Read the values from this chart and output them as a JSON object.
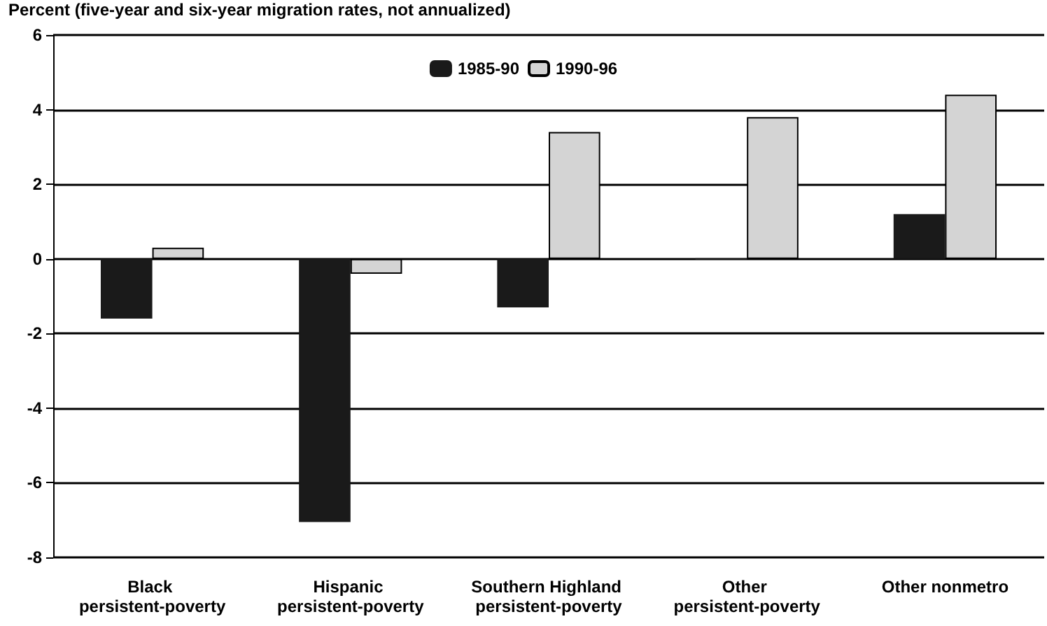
{
  "chart_data": {
    "type": "bar",
    "ylabel": "Percent (five-year and six-year migration rates, not annualized)",
    "categories": [
      "Black persistent-poverty",
      "Hispanic persistent-poverty",
      "Southern Highland persistent-poverty",
      "Other persistent-poverty",
      "Other nonmetro"
    ],
    "series": [
      {
        "name": "1985-90",
        "color": "#1a1a1a",
        "values": [
          -1.6,
          -7.05,
          -1.3,
          0,
          1.2
        ]
      },
      {
        "name": "1990-96",
        "color": "#d4d4d4",
        "values": [
          0.3,
          -0.4,
          3.4,
          3.8,
          4.4
        ]
      }
    ],
    "ylim": [
      -8,
      6
    ],
    "yticks": [
      -8,
      -6,
      -4,
      -2,
      0,
      2,
      4,
      6
    ],
    "grid": "y",
    "legend": "top"
  }
}
